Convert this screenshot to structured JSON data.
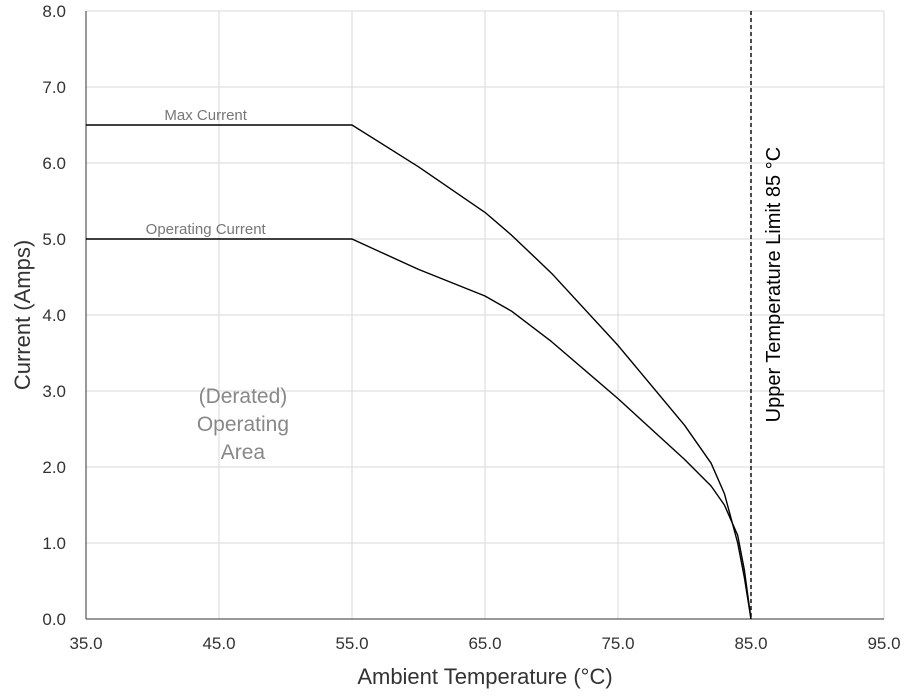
{
  "chart_data": {
    "type": "line",
    "title": "",
    "xlabel": "Ambient Temperature (°C)",
    "ylabel": "Current (Amps)",
    "xlim": [
      35,
      95
    ],
    "ylim": [
      0,
      8
    ],
    "x_ticks": [
      35,
      45,
      55,
      65,
      75,
      85,
      95
    ],
    "y_ticks": [
      0,
      1,
      2,
      3,
      4,
      5,
      6,
      7,
      8
    ],
    "x_tick_labels": [
      "35.0",
      "45.0",
      "55.0",
      "65.0",
      "75.0",
      "85.0",
      "95.0"
    ],
    "y_tick_labels": [
      "0.0",
      "1.0",
      "2.0",
      "3.0",
      "4.0",
      "5.0",
      "6.0",
      "7.0",
      "8.0"
    ],
    "grid": true,
    "legend": "none",
    "series": [
      {
        "name": "Max Current",
        "x": [
          35,
          55,
          60,
          65,
          67,
          70,
          75,
          80,
          82,
          83,
          84,
          84.5,
          85
        ],
        "y": [
          6.5,
          6.5,
          5.95,
          5.35,
          5.05,
          4.55,
          3.6,
          2.55,
          2.05,
          1.65,
          1.0,
          0.55,
          0
        ]
      },
      {
        "name": "Operating Current",
        "x": [
          35,
          55,
          60,
          65,
          67,
          70,
          75,
          80,
          82,
          83,
          84,
          84.5,
          85
        ],
        "y": [
          5.0,
          5.0,
          4.6,
          4.25,
          4.05,
          3.65,
          2.9,
          2.1,
          1.75,
          1.5,
          1.1,
          0.65,
          0
        ]
      }
    ],
    "annotations": {
      "area_label": [
        "(Derated)",
        "Operating",
        "Area"
      ],
      "limit_label": "Upper Temperature Limit 85 °C",
      "limit_x": 85
    },
    "colors": {
      "series": "#000000",
      "grid": "#d9d9d9",
      "series_label": "#777777",
      "area_label": "#888888"
    }
  }
}
